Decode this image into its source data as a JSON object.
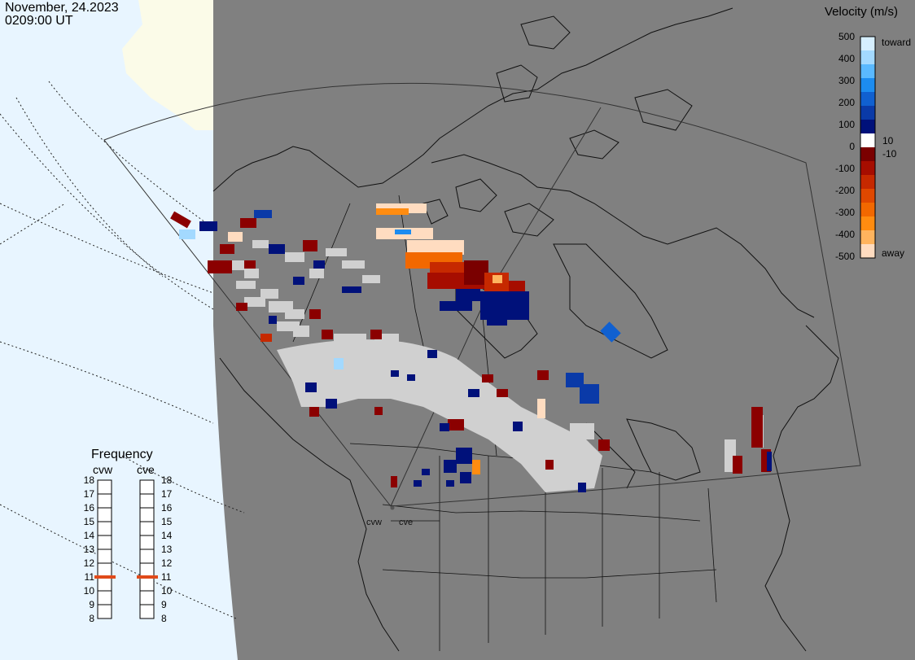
{
  "header": {
    "date": "November, 24.2023",
    "time": "0209:00 UT"
  },
  "colorbar": {
    "title": "Velocity (m/s)",
    "tick_labels": [
      "500",
      "400",
      "300",
      "200",
      "100",
      "0",
      "-100",
      "-200",
      "-300",
      "-400",
      "-500"
    ],
    "inner_labels": [
      "10",
      "-10"
    ],
    "toward_label": "toward",
    "away_label": "away",
    "colors": [
      "#d6efff",
      "#a3d9ff",
      "#5ab9ff",
      "#1c8cf0",
      "#1060d0",
      "#0a3aa8",
      "#00117a",
      "#ffffff",
      "#7a0000",
      "#a60d00",
      "#c62900",
      "#e04800",
      "#f26800",
      "#ff8c10",
      "#ffb45e",
      "#ffdcc0"
    ]
  },
  "frequency": {
    "title": "Frequency",
    "radars": [
      {
        "name": "cvw",
        "value_mhz": 11
      },
      {
        "name": "cve",
        "value_mhz": 11
      }
    ],
    "scale": [
      "18",
      "17",
      "16",
      "15",
      "14",
      "13",
      "12",
      "11",
      "10",
      "9",
      "8"
    ]
  },
  "sites": [
    "cvw",
    "cve"
  ],
  "colors": {
    "ocean": "#e8f5ff",
    "ice": "#fbfbe8",
    "land_dark": "#808080",
    "ground_scatter": "#d0d0d0",
    "frequency_marker": "#e04a1a"
  }
}
